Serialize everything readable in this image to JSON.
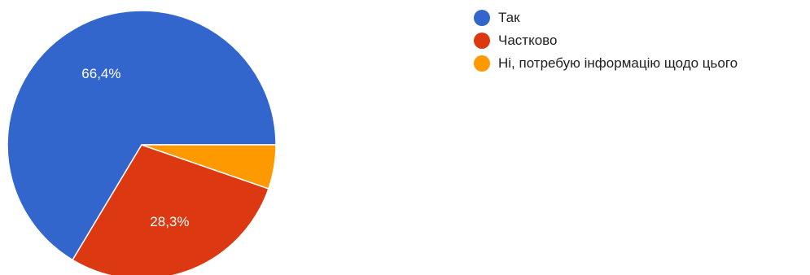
{
  "chart_data": {
    "type": "pie",
    "title": "",
    "series": [
      {
        "categories": [
          "Так",
          "Частково",
          "Ні, потребую інформацію щодо цього"
        ],
        "values": [
          66.4,
          28.3,
          5.3
        ],
        "labels": [
          "66,4%",
          "28,3%",
          ""
        ],
        "colors": [
          "#3366cc",
          "#dc3912",
          "#ff9900"
        ]
      }
    ],
    "legend": "right",
    "start_angle": "3 o'clock",
    "direction": "clockwise"
  },
  "legend": {
    "items": [
      {
        "label": "Так",
        "color": "#3366cc"
      },
      {
        "label": "Частково",
        "color": "#dc3912"
      },
      {
        "label": "Ні, потребую інформацію щодо цього",
        "color": "#ff9900"
      }
    ]
  }
}
